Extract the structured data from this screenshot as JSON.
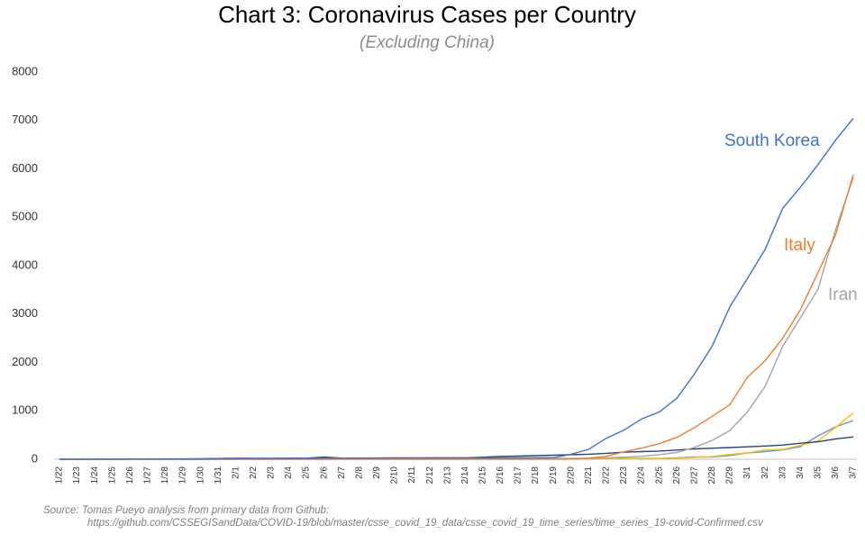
{
  "chart_data": {
    "type": "line",
    "title": "Chart 3: Coronavirus Cases per Country",
    "subtitle": "(Excluding China)",
    "source": [
      "Source: Tomas Pueyo analysis from primary data from Github:",
      "https://github.com/CSSEGISandData/COVID-19/blob/master/csse_covid_19_data/csse_covid_19_time_series/time_series_19-covid-Confirmed.csv"
    ],
    "categories": [
      "1/22",
      "1/23",
      "1/24",
      "1/25",
      "1/26",
      "1/27",
      "1/28",
      "1/29",
      "1/30",
      "1/31",
      "2/1",
      "2/2",
      "2/3",
      "2/4",
      "2/5",
      "2/6",
      "2/7",
      "2/8",
      "2/9",
      "2/10",
      "2/11",
      "2/12",
      "2/13",
      "2/14",
      "2/15",
      "2/16",
      "2/17",
      "2/18",
      "2/19",
      "2/20",
      "2/21",
      "2/22",
      "2/23",
      "2/24",
      "2/25",
      "2/26",
      "2/27",
      "2/28",
      "2/29",
      "3/1",
      "3/2",
      "3/3",
      "3/4",
      "3/5",
      "3/6",
      "3/7"
    ],
    "series": [
      {
        "name": "South Korea",
        "color": "#4472c4",
        "values": [
          1,
          1,
          2,
          2,
          3,
          4,
          4,
          4,
          4,
          11,
          12,
          15,
          15,
          16,
          19,
          23,
          24,
          24,
          25,
          27,
          28,
          28,
          28,
          28,
          28,
          29,
          30,
          31,
          31,
          104,
          204,
          433,
          602,
          833,
          977,
          1261,
          1766,
          2337,
          3150,
          3736,
          4335,
          5186,
          5621,
          6088,
          6593,
          7041
        ]
      },
      {
        "name": "Italy",
        "color": "#ed7d31",
        "values": [
          0,
          0,
          0,
          0,
          0,
          0,
          0,
          0,
          0,
          2,
          2,
          2,
          2,
          2,
          2,
          2,
          3,
          3,
          3,
          3,
          3,
          3,
          3,
          3,
          3,
          3,
          3,
          3,
          3,
          3,
          20,
          62,
          155,
          229,
          322,
          453,
          655,
          888,
          1128,
          1694,
          2036,
          2502,
          3089,
          3858,
          4636,
          5883
        ]
      },
      {
        "name": "Iran",
        "color": "#a5a5a5",
        "values": [
          0,
          0,
          0,
          0,
          0,
          0,
          0,
          0,
          0,
          0,
          0,
          0,
          0,
          0,
          0,
          0,
          0,
          0,
          0,
          0,
          0,
          0,
          0,
          0,
          0,
          0,
          0,
          0,
          2,
          5,
          18,
          28,
          43,
          61,
          95,
          139,
          245,
          388,
          593,
          978,
          1501,
          2336,
          2922,
          3513,
          4747,
          5823
        ]
      },
      {
        "color": "#264478",
        "values": [
          2,
          1,
          2,
          2,
          4,
          4,
          7,
          7,
          11,
          15,
          20,
          20,
          20,
          22,
          22,
          45,
          25,
          25,
          26,
          26,
          26,
          28,
          28,
          29,
          43,
          59,
          66,
          74,
          84,
          94,
          105,
          122,
          147,
          159,
          170,
          189,
          214,
          228,
          241,
          256,
          274,
          293,
          331,
          360,
          420,
          461
        ]
      },
      {
        "color": "#ffc000",
        "values": [
          0,
          0,
          2,
          3,
          3,
          3,
          4,
          5,
          5,
          5,
          6,
          6,
          6,
          6,
          6,
          6,
          6,
          11,
          11,
          11,
          11,
          11,
          11,
          11,
          12,
          12,
          12,
          12,
          12,
          12,
          12,
          12,
          12,
          12,
          14,
          18,
          38,
          57,
          100,
          130,
          191,
          204,
          288,
          380,
          656,
          957
        ]
      },
      {
        "color": "#5b9bd5",
        "values": [
          0,
          0,
          0,
          0,
          0,
          1,
          4,
          4,
          4,
          5,
          8,
          10,
          12,
          12,
          12,
          12,
          13,
          13,
          14,
          14,
          16,
          16,
          16,
          16,
          16,
          16,
          16,
          16,
          16,
          16,
          16,
          16,
          16,
          16,
          17,
          27,
          46,
          48,
          79,
          130,
          159,
          196,
          262,
          482,
          670,
          799
        ]
      }
    ],
    "ylim": [
      0,
      8000
    ],
    "yticks": [
      0,
      1000,
      2000,
      3000,
      4000,
      5000,
      6000,
      7000,
      8000
    ],
    "grid": false
  }
}
